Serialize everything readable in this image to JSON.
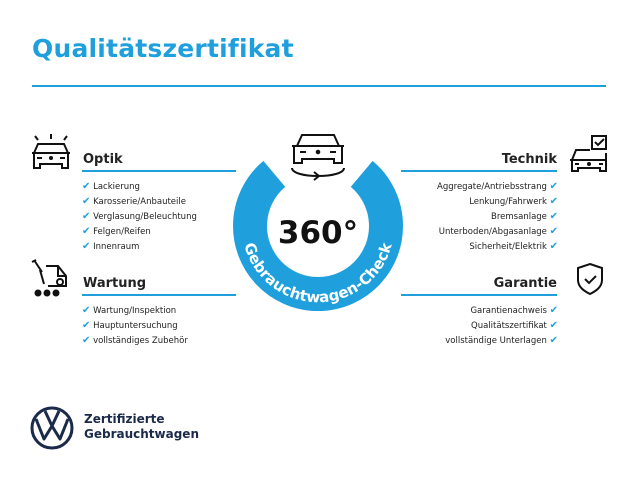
{
  "title": "Qualitätszertifikat",
  "badge": {
    "number": "360°",
    "arc_text": "Gebrauchtwagen-Check",
    "color": "#1fa0dc"
  },
  "sections": {
    "optik": {
      "heading": "Optik",
      "icon": "car-lights-icon",
      "items": [
        "Lackierung",
        "Karosserie/Anbauteile",
        "Verglasung/Beleuchtung",
        "Felgen/Reifen",
        "Innenraum"
      ]
    },
    "wartung": {
      "heading": "Wartung",
      "icon": "service-van-icon",
      "items": [
        "Wartung/Inspektion",
        "Hauptuntersuchung",
        "vollständiges Zubehör"
      ]
    },
    "technik": {
      "heading": "Technik",
      "icon": "car-checkbox-icon",
      "items": [
        "Aggregate/Antriebsstrang",
        "Lenkung/Fahrwerk",
        "Bremsanlage",
        "Unterboden/Abgasanlage",
        "Sicherheit/Elektrik"
      ]
    },
    "garantie": {
      "heading": "Garantie",
      "icon": "shield-check-icon",
      "items": [
        "Garantienachweis",
        "Qualitätszertifikat",
        "vollständige Unterlagen"
      ]
    }
  },
  "check_mark": "✔",
  "footer": {
    "line1": "Zertifizierte",
    "line2": "Gebrauchtwagen",
    "logo": "VW"
  }
}
